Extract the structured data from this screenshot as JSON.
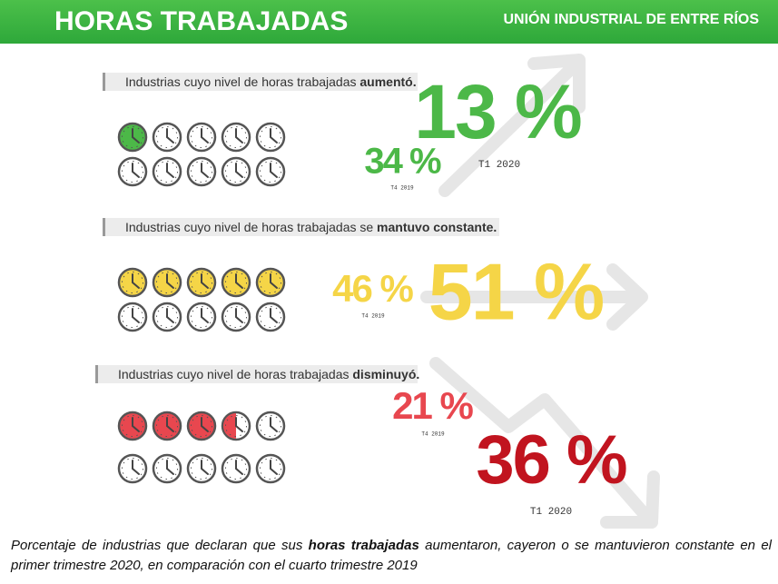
{
  "header": {
    "title": "HORAS TRABAJADAS",
    "organization": "UNIÓN INDUSTRIAL DE ENTRE RÍOS"
  },
  "sections": [
    {
      "label": "Industrias cuyo nivel de horas trabajadas ",
      "label_bold": "aumentó.",
      "previous": "34 %",
      "previous_period": "T4 2019",
      "current": "13 %",
      "current_period": "T1 2020"
    },
    {
      "label": "Industrias cuyo nivel de horas trabajadas se ",
      "label_bold": "mantuvo constante.",
      "previous": "46 %",
      "previous_period": "T4 2019",
      "current": "51 %"
    },
    {
      "label": "Industrias cuyo nivel de horas trabajadas ",
      "label_bold": "disminuyó.",
      "previous": "21 %",
      "previous_period": "T4 2019",
      "current": "36 %",
      "current_period": "T1 2020"
    }
  ],
  "caption": {
    "before": "Porcentaje de industrias que declaran que sus ",
    "bold": "horas trabajadas",
    "after": " aumentaron, cayeron o se mantuvieron constante en el primer trimestre 2020, en comparación con el cuarto trimestre 2019"
  }
}
